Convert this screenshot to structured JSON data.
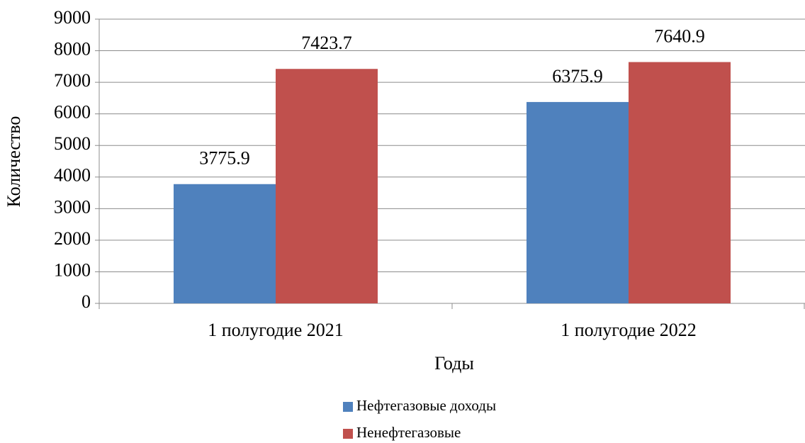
{
  "chart_data": {
    "type": "bar",
    "x_label": "Годы",
    "y_label": "Количество",
    "categories": [
      "1 полугодие 2021",
      "1 полугодие 2022"
    ],
    "series": [
      {
        "name": "Нефтегазовые доходы",
        "color": "#4f81bd",
        "values": [
          3775.9,
          6375.9
        ]
      },
      {
        "name": "Ненефтегазовые",
        "color": "#c0504d",
        "values": [
          7423.7,
          7640.9
        ]
      }
    ],
    "ylim": [
      0,
      9000
    ],
    "yticks": [
      0,
      1000,
      2000,
      3000,
      4000,
      5000,
      6000,
      7000,
      8000,
      9000
    ],
    "grid": true,
    "legend": "bottom"
  }
}
